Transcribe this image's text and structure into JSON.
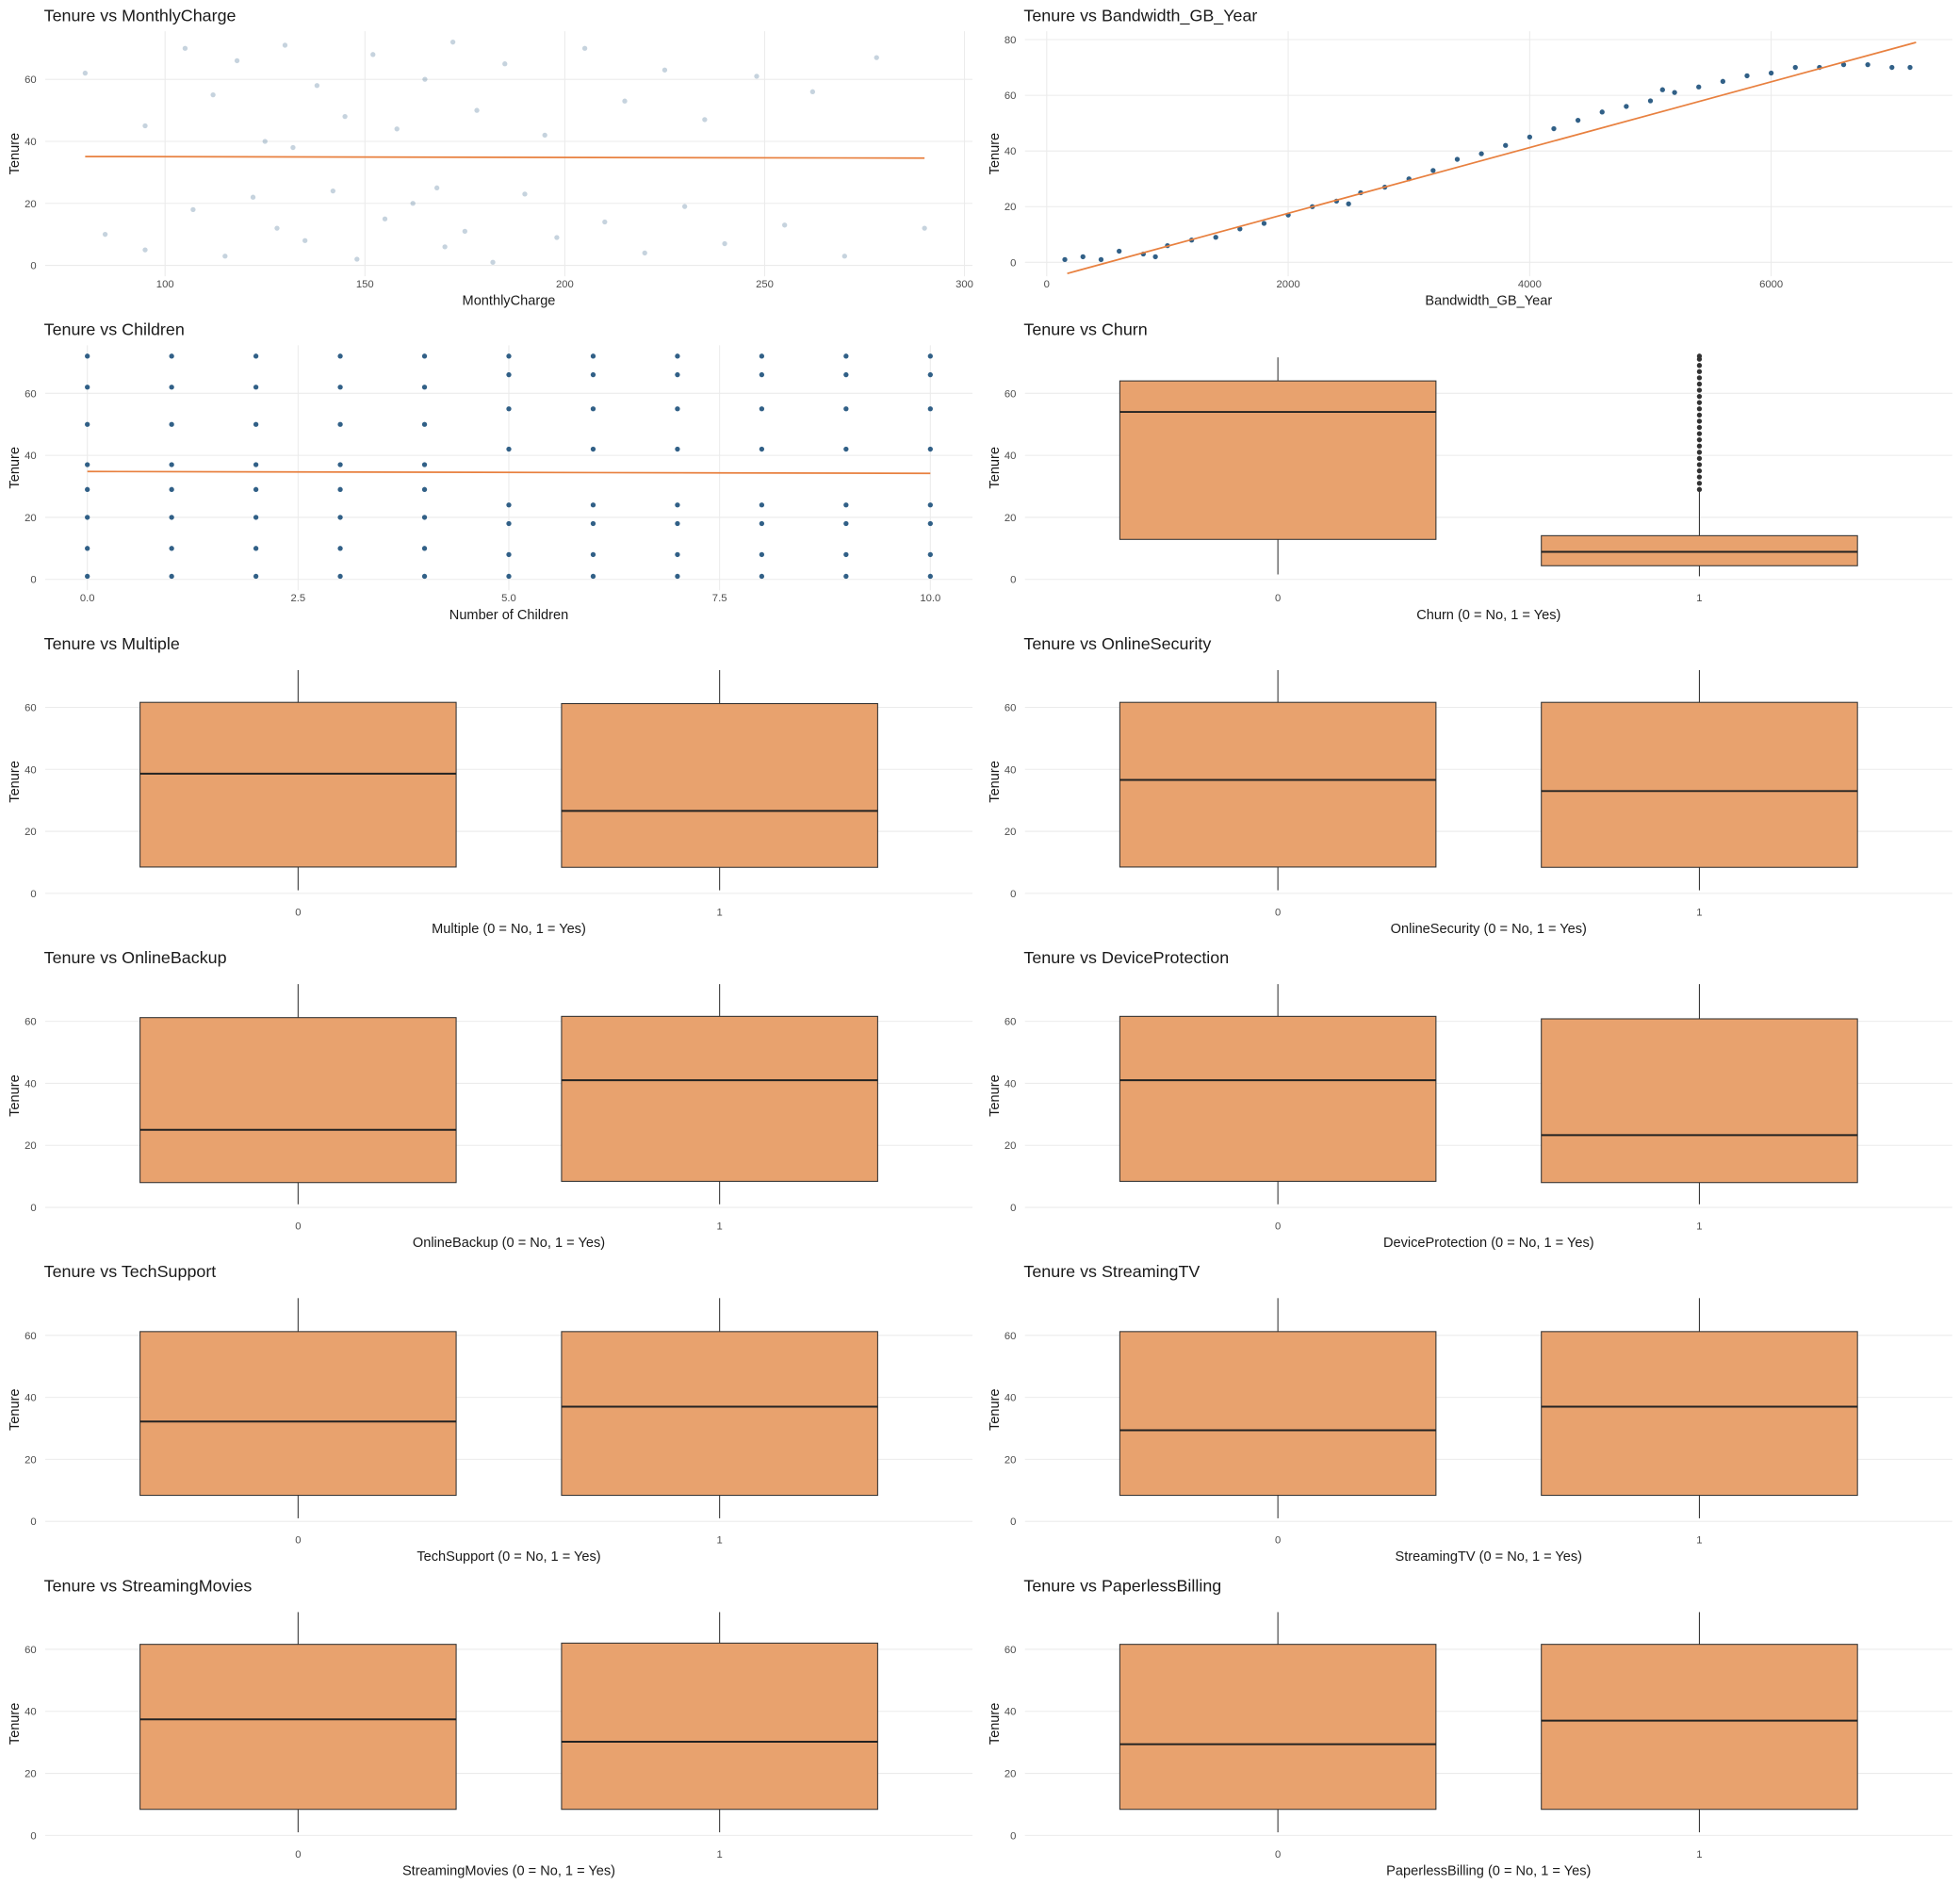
{
  "chart_data": [
    {
      "type": "scatter",
      "title": "Tenure vs MonthlyCharge",
      "xlabel": "MonthlyCharge",
      "ylabel": "Tenure",
      "color": "#1b4f7a",
      "opacity": 0.25,
      "x": [
        80,
        85,
        95,
        95,
        105,
        107,
        112,
        115,
        118,
        122,
        125,
        128,
        130,
        135,
        138,
        142,
        145,
        148,
        152,
        155,
        158,
        162,
        165,
        170,
        172,
        175,
        178,
        182,
        185,
        190,
        195,
        198,
        205,
        210,
        215,
        220,
        225,
        230,
        235,
        240,
        248,
        255,
        262,
        270,
        278,
        290,
        132,
        168
      ],
      "values": [
        62,
        10,
        45,
        5,
        70,
        18,
        55,
        3,
        66,
        22,
        40,
        12,
        71,
        8,
        58,
        24,
        48,
        2,
        68,
        15,
        44,
        20,
        60,
        6,
        72,
        11,
        50,
        1,
        65,
        23,
        42,
        9,
        70,
        14,
        53,
        4,
        63,
        19,
        47,
        7,
        61,
        13,
        56,
        3,
        67,
        12,
        38,
        25
      ],
      "trend": {
        "x": [
          80,
          290
        ],
        "values": [
          35.1,
          34.6
        ],
        "color": "#e8803f"
      },
      "xlim": [
        70,
        302
      ],
      "xticks": [
        100,
        150,
        200,
        250,
        300
      ],
      "ylim": [
        -3.5,
        75.5
      ],
      "yticks": [
        0,
        20,
        40,
        60
      ],
      "grid": true
    },
    {
      "type": "scatter",
      "title": "Tenure vs Bandwidth_GB_Year",
      "xlabel": "Bandwidth_GB_Year",
      "ylabel": "Tenure",
      "color": "#1b4f7a",
      "opacity": 0.9,
      "x": [
        150,
        300,
        450,
        600,
        800,
        1000,
        1200,
        1400,
        1600,
        1800,
        2000,
        2200,
        2400,
        2600,
        2800,
        3000,
        3200,
        3400,
        3600,
        3800,
        4000,
        4200,
        4400,
        4600,
        4800,
        5000,
        5200,
        5400,
        5600,
        5800,
        6000,
        6200,
        6400,
        6600,
        6800,
        7000,
        7150,
        900,
        2500,
        5100
      ],
      "values": [
        1,
        2,
        1,
        4,
        3,
        6,
        8,
        9,
        12,
        14,
        17,
        20,
        22,
        25,
        27,
        30,
        33,
        37,
        39,
        42,
        45,
        48,
        51,
        54,
        56,
        58,
        61,
        63,
        65,
        67,
        68,
        70,
        70,
        71,
        71,
        70,
        70,
        2,
        21,
        62
      ],
      "trend": {
        "x": [
          170,
          7200
        ],
        "values": [
          -4,
          79
        ],
        "color": "#e8803f"
      },
      "xlim": [
        -180,
        7500
      ],
      "xticks": [
        0,
        2000,
        4000,
        6000
      ],
      "ylim": [
        -5,
        83
      ],
      "yticks": [
        0,
        20,
        40,
        60,
        80
      ],
      "grid": true
    },
    {
      "type": "scatter",
      "title": "Tenure vs Children",
      "xlabel": "Number of Children",
      "ylabel": "Tenure",
      "color": "#1b4f7a",
      "opacity": 0.9,
      "x": [
        0,
        0,
        0,
        0,
        0,
        0,
        0,
        0,
        1,
        1,
        1,
        1,
        1,
        1,
        1,
        1,
        2,
        2,
        2,
        2,
        2,
        2,
        2,
        2,
        3,
        3,
        3,
        3,
        3,
        3,
        3,
        3,
        4,
        4,
        4,
        4,
        4,
        4,
        4,
        4,
        5,
        5,
        5,
        5,
        5,
        5,
        5,
        5,
        6,
        6,
        6,
        6,
        6,
        6,
        6,
        6,
        7,
        7,
        7,
        7,
        7,
        7,
        7,
        7,
        8,
        8,
        8,
        8,
        8,
        8,
        8,
        8,
        9,
        9,
        9,
        9,
        9,
        9,
        9,
        9,
        10,
        10,
        10,
        10,
        10,
        10,
        10,
        10
      ],
      "values": [
        1,
        10,
        20,
        29,
        37,
        50,
        62,
        72,
        1,
        10,
        20,
        29,
        37,
        50,
        62,
        72,
        1,
        10,
        20,
        29,
        37,
        50,
        62,
        72,
        1,
        10,
        20,
        29,
        37,
        50,
        62,
        72,
        1,
        10,
        20,
        29,
        37,
        50,
        62,
        72,
        1,
        8,
        18,
        24,
        42,
        55,
        66,
        72,
        1,
        8,
        18,
        24,
        42,
        55,
        66,
        72,
        1,
        8,
        18,
        24,
        42,
        55,
        66,
        72,
        1,
        8,
        18,
        24,
        42,
        55,
        66,
        72,
        1,
        8,
        18,
        24,
        42,
        55,
        66,
        72,
        1,
        8,
        18,
        24,
        42,
        55,
        66,
        72
      ],
      "trend": {
        "x": [
          0,
          10
        ],
        "values": [
          34.8,
          34.2
        ],
        "color": "#e8803f"
      },
      "xlim": [
        -0.5,
        10.5
      ],
      "xticks": [
        {
          "value": 0,
          "label": "0.0"
        },
        2.5,
        {
          "value": 5,
          "label": "5.0"
        },
        7.5,
        {
          "value": 10,
          "label": "10.0"
        }
      ],
      "ylim": [
        -3.5,
        75.5
      ],
      "yticks": [
        0,
        20,
        40,
        60
      ],
      "grid": true
    },
    {
      "type": "box",
      "title": "Tenure vs Churn",
      "xlabel": "Churn (0 = No, 1 = Yes)",
      "ylabel": "Tenure",
      "color": "#e8a26e",
      "categories": [
        "0",
        "1"
      ],
      "boxes": [
        {
          "low": 1.6,
          "q1": 12.9,
          "median": 54,
          "q3": 64,
          "high": 71.6,
          "outliers": []
        },
        {
          "low": 1,
          "q1": 4.4,
          "median": 8.9,
          "q3": 14.1,
          "high": 28.2,
          "outliers": [
            29,
            31,
            33,
            35,
            37,
            39,
            41,
            43,
            45,
            47,
            49,
            51,
            53,
            55,
            57,
            59,
            61,
            63,
            65,
            67,
            69,
            71,
            72
          ]
        }
      ],
      "ylim": [
        -3.5,
        75.5
      ],
      "yticks": [
        0,
        20,
        40,
        60
      ],
      "grid": true
    },
    {
      "type": "box",
      "title": "Tenure vs Multiple",
      "xlabel": "Multiple (0 = No, 1 = Yes)",
      "ylabel": "Tenure",
      "color": "#e8a26e",
      "categories": [
        "0",
        "1"
      ],
      "boxes": [
        {
          "low": 1,
          "q1": 8.5,
          "median": 38.6,
          "q3": 61.6,
          "high": 72,
          "outliers": []
        },
        {
          "low": 1,
          "q1": 8.4,
          "median": 26.6,
          "q3": 61.2,
          "high": 72,
          "outliers": []
        }
      ],
      "ylim": [
        -3.5,
        75.5
      ],
      "yticks": [
        0,
        20,
        40,
        60
      ],
      "grid": true
    },
    {
      "type": "box",
      "title": "Tenure vs OnlineSecurity",
      "xlabel": "OnlineSecurity (0 = No, 1 = Yes)",
      "ylabel": "Tenure",
      "color": "#e8a26e",
      "categories": [
        "0",
        "1"
      ],
      "boxes": [
        {
          "low": 1,
          "q1": 8.5,
          "median": 36.6,
          "q3": 61.6,
          "high": 72,
          "outliers": []
        },
        {
          "low": 1,
          "q1": 8.4,
          "median": 33,
          "q3": 61.6,
          "high": 72,
          "outliers": []
        }
      ],
      "ylim": [
        -3.5,
        75.5
      ],
      "yticks": [
        0,
        20,
        40,
        60
      ],
      "grid": true
    },
    {
      "type": "box",
      "title": "Tenure vs OnlineBackup",
      "xlabel": "OnlineBackup (0 = No, 1 = Yes)",
      "ylabel": "Tenure",
      "color": "#e8a26e",
      "categories": [
        "0",
        "1"
      ],
      "boxes": [
        {
          "low": 1,
          "q1": 8,
          "median": 25,
          "q3": 61.2,
          "high": 72,
          "outliers": []
        },
        {
          "low": 1,
          "q1": 8.4,
          "median": 41,
          "q3": 61.6,
          "high": 72,
          "outliers": []
        }
      ],
      "ylim": [
        -3.5,
        75.5
      ],
      "yticks": [
        0,
        20,
        40,
        60
      ],
      "grid": true
    },
    {
      "type": "box",
      "title": "Tenure vs DeviceProtection",
      "xlabel": "DeviceProtection (0 = No, 1 = Yes)",
      "ylabel": "Tenure",
      "color": "#e8a26e",
      "categories": [
        "0",
        "1"
      ],
      "boxes": [
        {
          "low": 1,
          "q1": 8.4,
          "median": 41,
          "q3": 61.6,
          "high": 72,
          "outliers": []
        },
        {
          "low": 1,
          "q1": 8,
          "median": 23.3,
          "q3": 60.8,
          "high": 72,
          "outliers": []
        }
      ],
      "ylim": [
        -3.5,
        75.5
      ],
      "yticks": [
        0,
        20,
        40,
        60
      ],
      "grid": true
    },
    {
      "type": "box",
      "title": "Tenure vs TechSupport",
      "xlabel": "TechSupport (0 = No, 1 = Yes)",
      "ylabel": "Tenure",
      "color": "#e8a26e",
      "categories": [
        "0",
        "1"
      ],
      "boxes": [
        {
          "low": 1,
          "q1": 8.4,
          "median": 32.2,
          "q3": 61.2,
          "high": 72,
          "outliers": []
        },
        {
          "low": 1,
          "q1": 8.4,
          "median": 37,
          "q3": 61.2,
          "high": 72,
          "outliers": []
        }
      ],
      "ylim": [
        -3.5,
        75.5
      ],
      "yticks": [
        0,
        20,
        40,
        60
      ],
      "grid": true
    },
    {
      "type": "box",
      "title": "Tenure vs StreamingTV",
      "xlabel": "StreamingTV (0 = No, 1 = Yes)",
      "ylabel": "Tenure",
      "color": "#e8a26e",
      "categories": [
        "0",
        "1"
      ],
      "boxes": [
        {
          "low": 1,
          "q1": 8.4,
          "median": 29.4,
          "q3": 61.2,
          "high": 72,
          "outliers": []
        },
        {
          "low": 1,
          "q1": 8.4,
          "median": 37,
          "q3": 61.2,
          "high": 72,
          "outliers": []
        }
      ],
      "ylim": [
        -3.5,
        75.5
      ],
      "yticks": [
        0,
        20,
        40,
        60
      ],
      "grid": true
    },
    {
      "type": "box",
      "title": "Tenure vs StreamingMovies",
      "xlabel": "StreamingMovies (0 = No, 1 = Yes)",
      "ylabel": "Tenure",
      "color": "#e8a26e",
      "categories": [
        "0",
        "1"
      ],
      "boxes": [
        {
          "low": 1,
          "q1": 8.4,
          "median": 37.4,
          "q3": 61.6,
          "high": 72,
          "outliers": []
        },
        {
          "low": 1,
          "q1": 8.4,
          "median": 30.2,
          "q3": 62,
          "high": 72,
          "outliers": []
        }
      ],
      "ylim": [
        -3.5,
        75.5
      ],
      "yticks": [
        0,
        20,
        40,
        60
      ],
      "grid": true
    },
    {
      "type": "box",
      "title": "Tenure vs PaperlessBilling",
      "xlabel": "PaperlessBilling (0 = No, 1 = Yes)",
      "ylabel": "Tenure",
      "color": "#e8a26e",
      "categories": [
        "0",
        "1"
      ],
      "boxes": [
        {
          "low": 1,
          "q1": 8.4,
          "median": 29.4,
          "q3": 61.6,
          "high": 72,
          "outliers": []
        },
        {
          "low": 1,
          "q1": 8.4,
          "median": 37,
          "q3": 61.6,
          "high": 72,
          "outliers": []
        }
      ],
      "ylim": [
        -3.5,
        75.5
      ],
      "yticks": [
        0,
        20,
        40,
        60
      ],
      "grid": true
    }
  ]
}
